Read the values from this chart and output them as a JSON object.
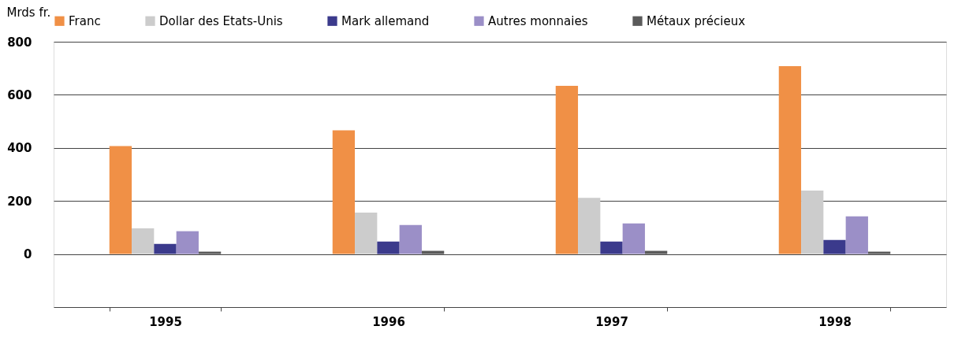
{
  "chart_data": {
    "type": "bar",
    "ylabel": "Mrds fr.",
    "categories": [
      "1995",
      "1996",
      "1997",
      "1998"
    ],
    "series": [
      {
        "name": "Franc",
        "color": "#f09046",
        "values": [
          407,
          466,
          634,
          708
        ]
      },
      {
        "name": "Dollar des Etats-Unis",
        "color": "#cccccc",
        "values": [
          97,
          156,
          212,
          239
        ]
      },
      {
        "name": "Mark allemand",
        "color": "#3b3a8c",
        "values": [
          38,
          47,
          47,
          53
        ]
      },
      {
        "name": "Autres monnaies",
        "color": "#9b8fc7",
        "values": [
          86,
          109,
          115,
          142
        ]
      },
      {
        "name": "Métaux précieux",
        "color": "#5a5a5a",
        "values": [
          9,
          12,
          12,
          9
        ]
      }
    ],
    "ylim": [
      -200,
      800
    ],
    "yticks": [
      0,
      200,
      400,
      600,
      800
    ],
    "grid": "y",
    "legend": "top"
  }
}
